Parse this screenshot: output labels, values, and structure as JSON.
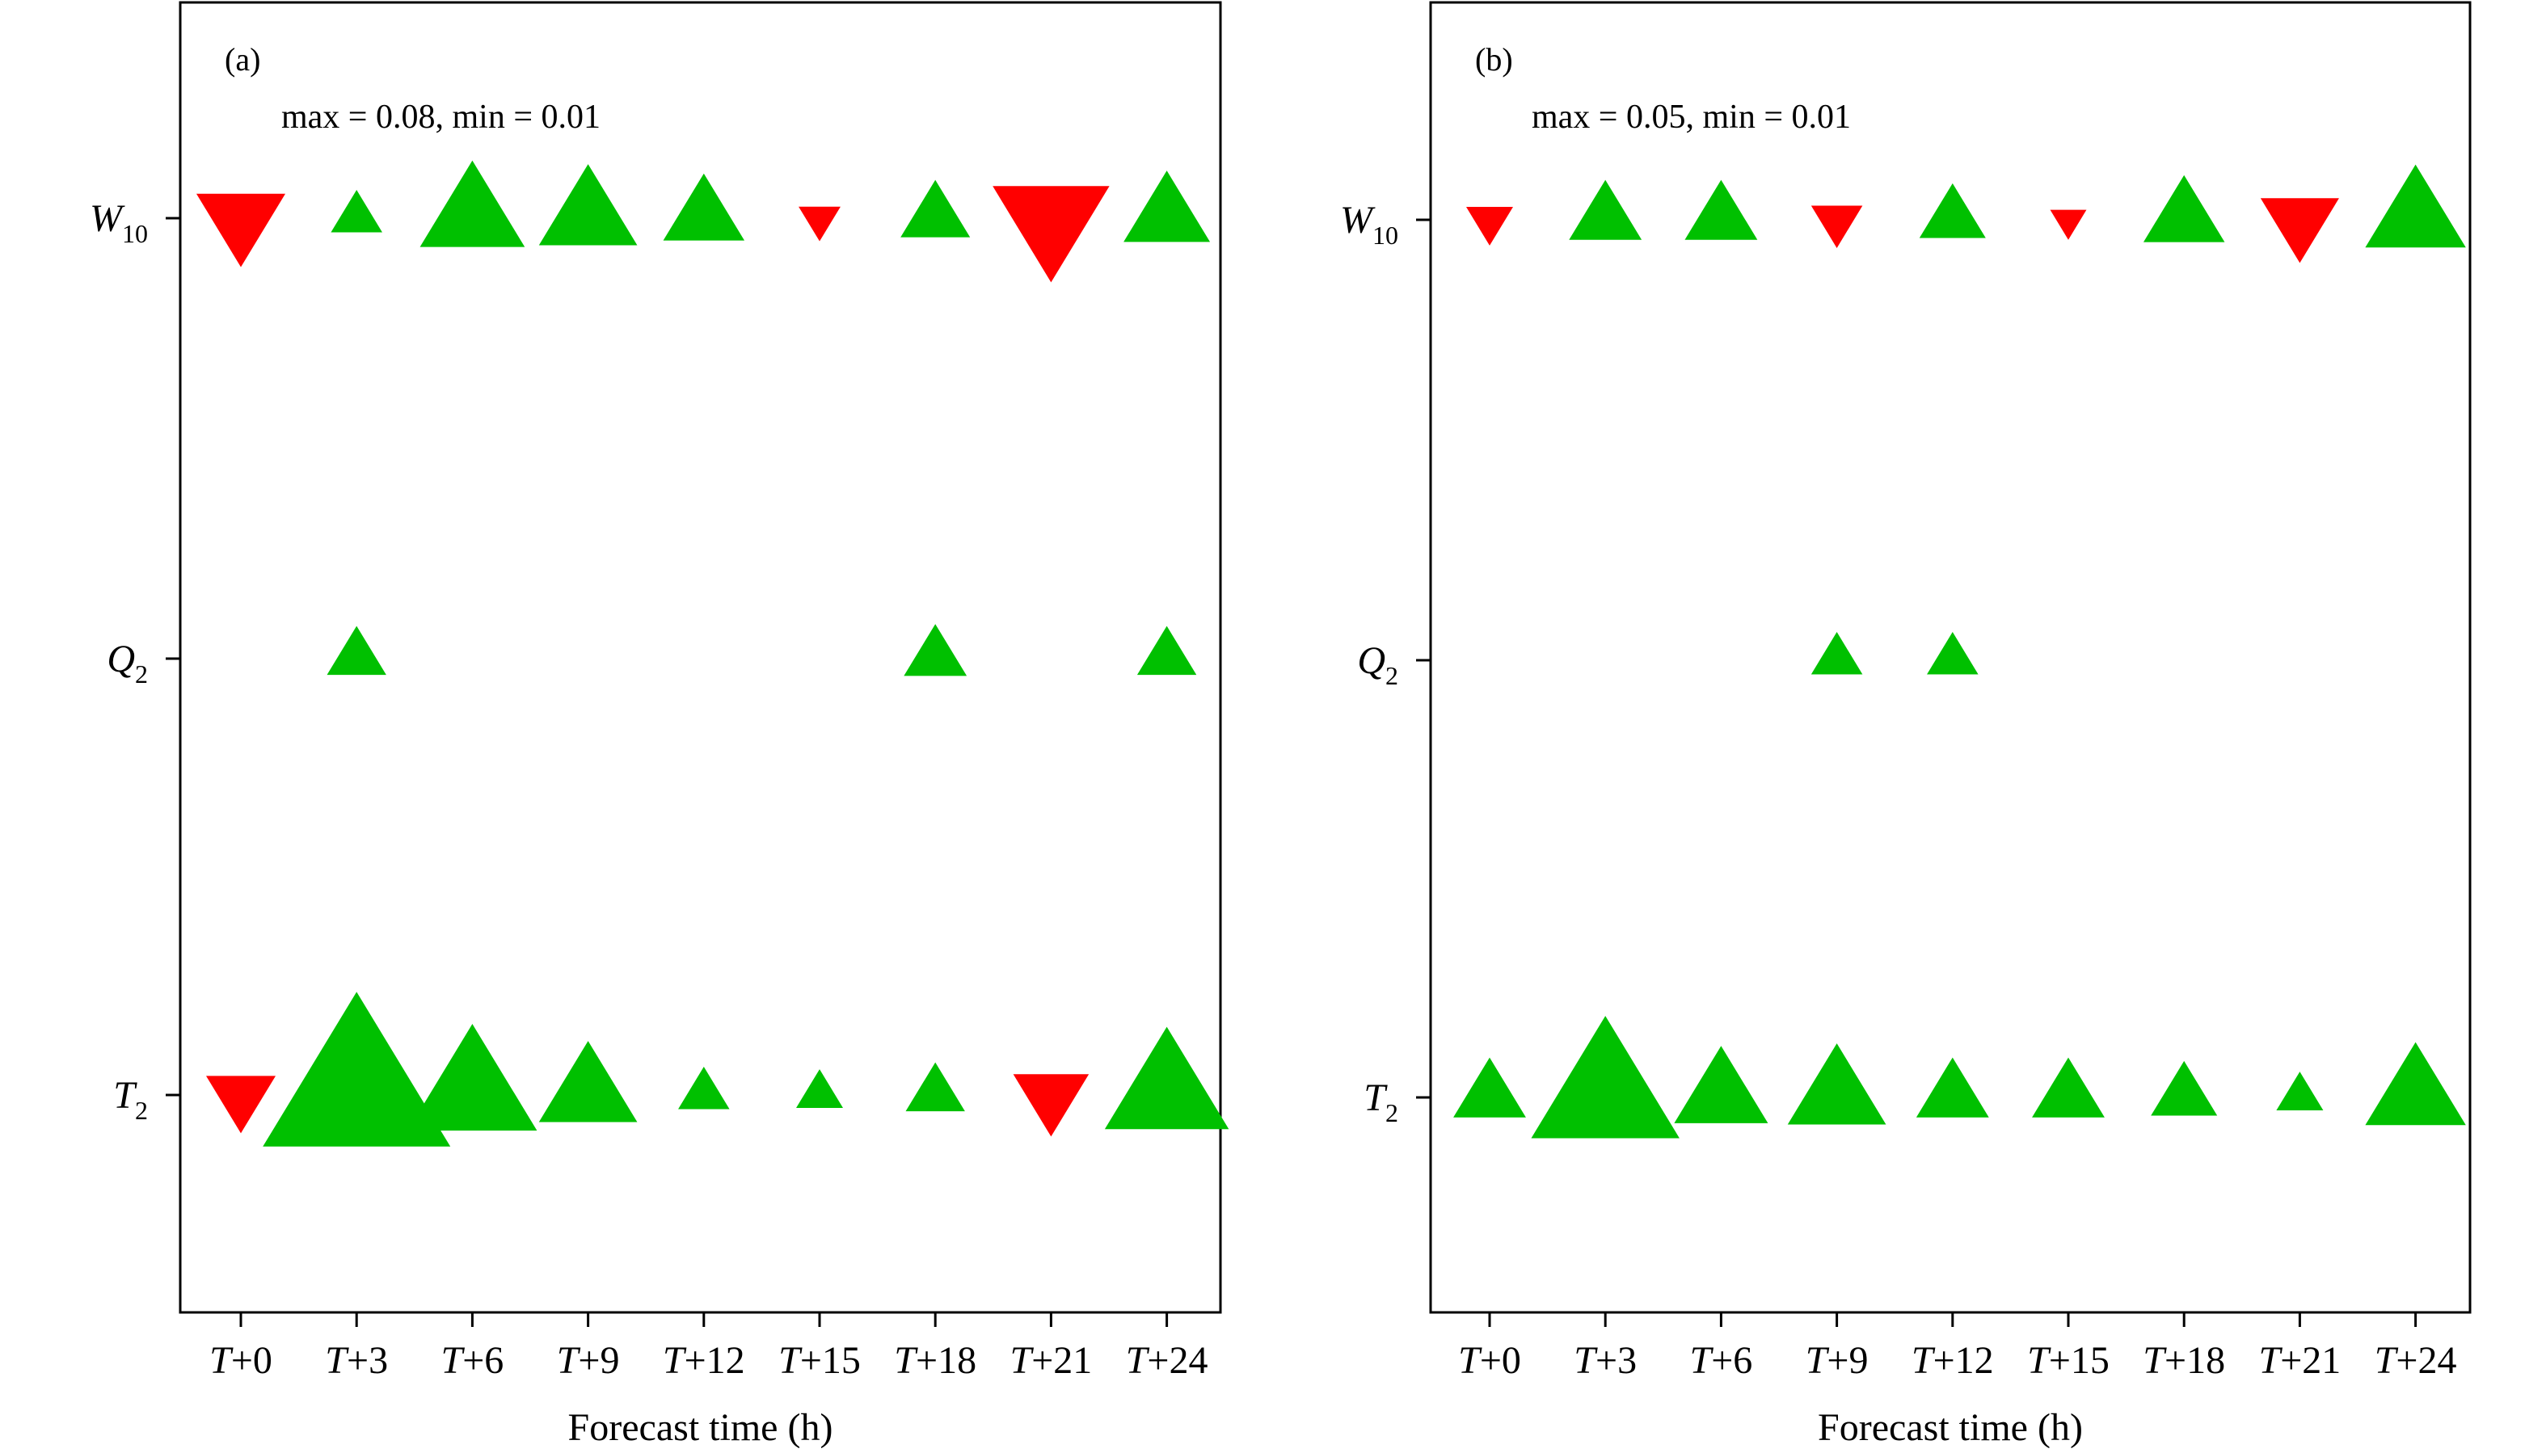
{
  "colors": {
    "positive": "#00c000",
    "negative": "#ff0000"
  },
  "chart_data": [
    {
      "type": "scatter",
      "marker": "triangle-sized",
      "panel_label": "(a)",
      "annotation": "max = 0.08, min = 0.01",
      "xlabel": "Forecast time (h)",
      "x_categories": [
        {
          "letter": "T",
          "suffix": "+0"
        },
        {
          "letter": "T",
          "suffix": "+3"
        },
        {
          "letter": "T",
          "suffix": "+6"
        },
        {
          "letter": "T",
          "suffix": "+9"
        },
        {
          "letter": "T",
          "suffix": "+12"
        },
        {
          "letter": "T",
          "suffix": "+15"
        },
        {
          "letter": "T",
          "suffix": "+18"
        },
        {
          "letter": "T",
          "suffix": "+21"
        },
        {
          "letter": "T",
          "suffix": "+24"
        }
      ],
      "y_categories": [
        {
          "letter": "W",
          "sub": "10"
        },
        {
          "letter": "Q",
          "sub": "2"
        },
        {
          "letter": "T",
          "sub": "2"
        }
      ],
      "series": [
        {
          "values": [
            -0.018,
            0.006,
            0.025,
            0.022,
            0.015,
            -0.004,
            0.011,
            -0.031,
            0.017
          ]
        },
        {
          "values": [
            0,
            0.008,
            0,
            0,
            0,
            0,
            0.009,
            0,
            0.008
          ]
        },
        {
          "values": [
            -0.011,
            0.08,
            0.038,
            0.022,
            0.006,
            0.005,
            0.008,
            -0.013,
            0.035
          ]
        }
      ]
    },
    {
      "type": "scatter",
      "marker": "triangle-sized",
      "panel_label": "(b)",
      "annotation": "max = 0.05, min = 0.01",
      "xlabel": "Forecast time (h)",
      "x_categories": [
        {
          "letter": "T",
          "suffix": "+0"
        },
        {
          "letter": "T",
          "suffix": "+3"
        },
        {
          "letter": "T",
          "suffix": "+6"
        },
        {
          "letter": "T",
          "suffix": "+9"
        },
        {
          "letter": "T",
          "suffix": "+12"
        },
        {
          "letter": "T",
          "suffix": "+15"
        },
        {
          "letter": "T",
          "suffix": "+18"
        },
        {
          "letter": "T",
          "suffix": "+21"
        },
        {
          "letter": "T",
          "suffix": "+24"
        }
      ],
      "y_categories": [
        {
          "letter": "W",
          "sub": "10"
        },
        {
          "letter": "Q",
          "sub": "2"
        },
        {
          "letter": "T",
          "sub": "2"
        }
      ],
      "series": [
        {
          "values": [
            -0.005,
            0.012,
            0.012,
            -0.006,
            0.01,
            -0.003,
            0.015,
            -0.014,
            0.023
          ]
        },
        {
          "values": [
            0,
            0,
            0,
            0.006,
            0.006,
            0,
            0,
            0,
            0
          ]
        },
        {
          "values": [
            0.012,
            0.05,
            0.02,
            0.022,
            0.012,
            0.012,
            0.01,
            0.005,
            0.023
          ]
        }
      ]
    }
  ]
}
